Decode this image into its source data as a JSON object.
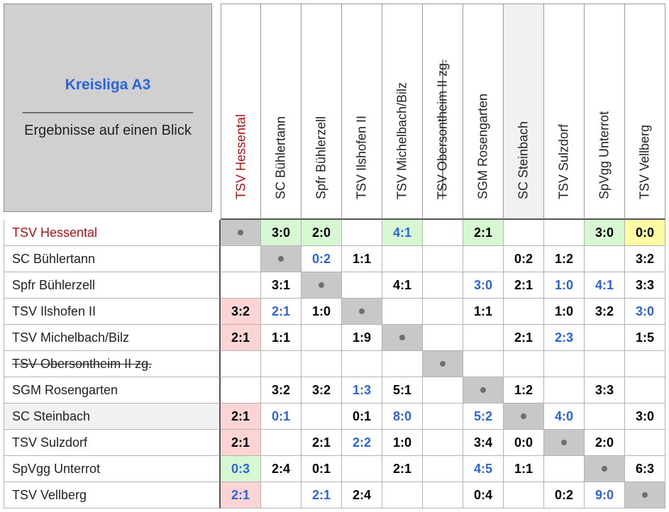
{
  "title": {
    "league": "Kreisliga A3",
    "divider": "________________________",
    "subtitle": "Ergebnisse auf einen Blick"
  },
  "teams": [
    {
      "name": "TSV Hessental",
      "highlight": true,
      "strike": false
    },
    {
      "name": "SC Bühlertann",
      "highlight": false,
      "strike": false
    },
    {
      "name": "Spfr Bühlerzell",
      "highlight": false,
      "strike": false
    },
    {
      "name": "TSV Ilshofen II",
      "highlight": false,
      "strike": false
    },
    {
      "name": "TSV Michelbach/Bilz",
      "highlight": false,
      "strike": false
    },
    {
      "name": "TSV Obersontheim II zg.",
      "highlight": false,
      "strike": true
    },
    {
      "name": "SGM Rosengarten",
      "highlight": false,
      "strike": false
    },
    {
      "name": "SC Steinbach",
      "highlight": false,
      "strike": false
    },
    {
      "name": "TSV Sulzdorf",
      "highlight": false,
      "strike": false
    },
    {
      "name": "SpVgg Unterrot",
      "highlight": false,
      "strike": false
    },
    {
      "name": "TSV Vellberg",
      "highlight": false,
      "strike": false
    }
  ],
  "row_backgrounds": [
    "",
    "",
    "",
    "",
    "",
    "",
    "",
    "#f1f1f1",
    "",
    "",
    ""
  ],
  "col_backgrounds": [
    "",
    "",
    "",
    "",
    "",
    "",
    "",
    "#f1f1f1",
    "",
    "",
    ""
  ],
  "results": [
    [
      null,
      "3:0",
      "2:0",
      "",
      "4:1",
      "",
      "2:1",
      "",
      "",
      "3:0",
      "0:0"
    ],
    [
      "",
      null,
      "0:2",
      "1:1",
      "",
      "",
      "",
      "0:2",
      "1:2",
      "",
      "3:2"
    ],
    [
      "",
      "3:1",
      null,
      "",
      "4:1",
      "",
      "3:0",
      "2:1",
      "1:0",
      "4:1",
      "3:3"
    ],
    [
      "3:2",
      "2:1",
      "1:0",
      null,
      "",
      "",
      "1:1",
      "",
      "1:0",
      "3:2",
      "3:0"
    ],
    [
      "2:1",
      "1:1",
      "",
      "1:9",
      null,
      "",
      "",
      "2:1",
      "2:3",
      "",
      "1:5"
    ],
    [
      "",
      "",
      "",
      "",
      "",
      null,
      "",
      "",
      "",
      "",
      ""
    ],
    [
      "",
      "3:2",
      "3:2",
      "1:3",
      "5:1",
      "",
      null,
      "1:2",
      "",
      "3:3",
      ""
    ],
    [
      "2:1",
      "0:1",
      "",
      "0:1",
      "8:0",
      "",
      "5:2",
      null,
      "4:0",
      "",
      "3:0"
    ],
    [
      "2:1",
      "",
      "2:1",
      "2:2",
      "1:0",
      "",
      "3:4",
      "0:0",
      null,
      "2:0",
      ""
    ],
    [
      "0:3",
      "2:4",
      "0:1",
      "",
      "2:1",
      "",
      "4:5",
      "1:1",
      "",
      null,
      "6:3"
    ],
    [
      "2:1",
      "",
      "2:1",
      "2:4",
      "",
      "",
      "0:4",
      "",
      "0:2",
      "9:0",
      null
    ]
  ],
  "score_colors": [
    [
      "",
      "#000000",
      "#000000",
      "",
      "#2b63d8",
      "",
      "#000000",
      "",
      "",
      "#000000",
      "#000000"
    ],
    [
      "",
      "",
      "#2b63d8",
      "#000000",
      "",
      "",
      "",
      "#000000",
      "#000000",
      "",
      "#000000"
    ],
    [
      "",
      "#000000",
      "",
      "",
      "#000000",
      "",
      "#2b63d8",
      "#000000",
      "#2b63d8",
      "#2b63d8",
      "#000000"
    ],
    [
      "#000000",
      "#2b63d8",
      "#000000",
      "",
      "",
      "",
      "#000000",
      "",
      "#000000",
      "#000000",
      "#2b63d8"
    ],
    [
      "#000000",
      "#000000",
      "",
      "#000000",
      "",
      "",
      "",
      "#000000",
      "#2b63d8",
      "",
      "#000000"
    ],
    [
      "",
      "",
      "",
      "",
      "",
      "",
      "",
      "",
      "",
      "",
      ""
    ],
    [
      "",
      "#000000",
      "#000000",
      "#2b63d8",
      "#000000",
      "",
      "",
      "#000000",
      "",
      "#000000",
      ""
    ],
    [
      "#000000",
      "#2b63d8",
      "",
      "#000000",
      "#2b63d8",
      "",
      "#2b63d8",
      "",
      "#2b63d8",
      "",
      "#000000"
    ],
    [
      "#000000",
      "",
      "#000000",
      "#2b63d8",
      "#000000",
      "",
      "#000000",
      "#000000",
      "",
      "#000000",
      ""
    ],
    [
      "#2b63d8",
      "#000000",
      "#000000",
      "",
      "#000000",
      "",
      "#2b63d8",
      "#000000",
      "",
      "",
      "#000000"
    ],
    [
      "#2b63d8",
      "",
      "#2b63d8",
      "#000000",
      "",
      "",
      "#000000",
      "",
      "#000000",
      "#2b63d8",
      ""
    ]
  ],
  "cell_backgrounds": [
    [
      "#c8c8c8",
      "#d7f7d2",
      "#d7f7d2",
      "",
      "#d7f7d2",
      "",
      "#d7f7d2",
      "",
      "",
      "#d7f7d2",
      "#fdfaa4"
    ],
    [
      "",
      "#c8c8c8",
      "",
      "",
      "",
      "",
      "",
      "",
      "",
      "",
      ""
    ],
    [
      "",
      "",
      "#c8c8c8",
      "",
      "",
      "",
      "",
      "",
      "",
      "",
      ""
    ],
    [
      "#fcd4d4",
      "",
      "",
      "#c8c8c8",
      "",
      "",
      "",
      "",
      "",
      "",
      ""
    ],
    [
      "#fcd4d4",
      "",
      "",
      "",
      "#c8c8c8",
      "",
      "",
      "",
      "",
      "",
      ""
    ],
    [
      "",
      "",
      "",
      "",
      "",
      "#c8c8c8",
      "",
      "",
      "",
      "",
      ""
    ],
    [
      "",
      "",
      "",
      "",
      "",
      "",
      "#c8c8c8",
      "",
      "",
      "",
      ""
    ],
    [
      "#fcd4d4",
      "",
      "",
      "",
      "",
      "",
      "",
      "#c8c8c8",
      "",
      "",
      ""
    ],
    [
      "#fcd4d4",
      "",
      "",
      "",
      "",
      "",
      "",
      "",
      "#c8c8c8",
      "",
      ""
    ],
    [
      "#d7f7d2",
      "",
      "",
      "",
      "",
      "",
      "",
      "",
      "",
      "#c8c8c8",
      ""
    ],
    [
      "#fcd4d4",
      "",
      "",
      "",
      "",
      "",
      "",
      "",
      "",
      "",
      "#c8c8c8"
    ]
  ],
  "colors": {
    "highlight_team": "#b01212",
    "home_result": "#000000",
    "away_result": "#2b63d8",
    "diagonal": "#c8c8c8",
    "win": "#d7f7d2",
    "loss": "#fcd4d4",
    "draw": "#fdfaa4"
  }
}
